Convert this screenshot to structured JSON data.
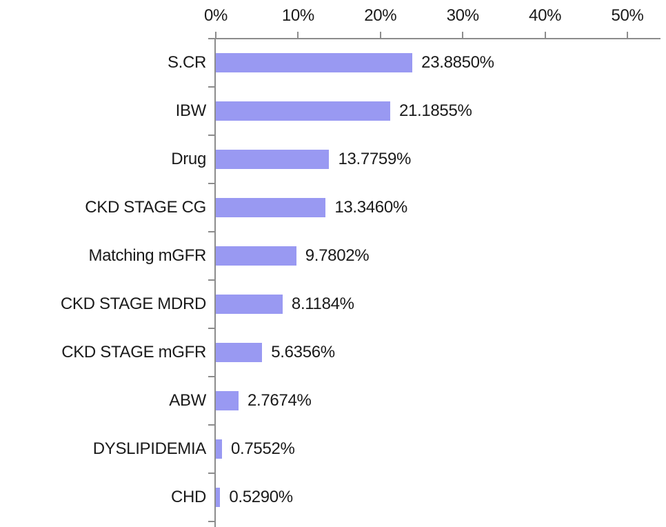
{
  "chart_data": {
    "type": "bar",
    "orientation": "horizontal",
    "title": "",
    "xlabel": "",
    "ylabel": "",
    "categories": [
      "S.CR",
      "IBW",
      "Drug",
      "CKD STAGE CG",
      "Matching mGFR",
      "CKD STAGE MDRD",
      "CKD STAGE mGFR",
      "ABW",
      "DYSLIPIDEMIA",
      "CHD"
    ],
    "values": [
      23.885,
      21.1855,
      13.7759,
      13.346,
      9.7802,
      8.1184,
      5.6356,
      2.7674,
      0.7552,
      0.529
    ],
    "value_labels": [
      "23.8850%",
      "21.1855%",
      "13.7759%",
      "13.3460%",
      "9.7802%",
      "8.1184%",
      "5.6356%",
      "2.7674%",
      "0.7552%",
      "0.5290%"
    ],
    "x_axis": {
      "position": "top",
      "tick_values": [
        0,
        10,
        20,
        30,
        40,
        50
      ],
      "tick_labels": [
        "0%",
        "10%",
        "20%",
        "30%",
        "40%",
        "50%"
      ],
      "range": [
        0,
        50
      ]
    },
    "grid": false,
    "legend": false,
    "colors": {
      "bar": "#9999F2",
      "axis": "#8C8C8C",
      "text": "#1A1A1A",
      "background": "#FFFFFF"
    }
  }
}
